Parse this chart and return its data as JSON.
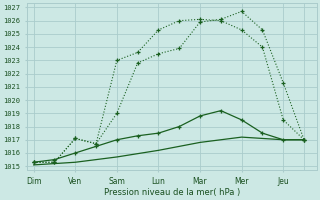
{
  "xlabel": "Pression niveau de la mer( hPa )",
  "ylim": [
    1015,
    1027
  ],
  "yticks": [
    1015,
    1016,
    1017,
    1018,
    1019,
    1020,
    1021,
    1022,
    1023,
    1024,
    1025,
    1026,
    1027
  ],
  "days": [
    "Dim",
    "Ven",
    "Sam",
    "Lun",
    "Mar",
    "Mer",
    "Jeu"
  ],
  "day_x": [
    0,
    1,
    2,
    3,
    4,
    5,
    6
  ],
  "line1_x": [
    0,
    0.5,
    1.0,
    1.5,
    2.0,
    2.5,
    3.0,
    3.5,
    4.0,
    4.5,
    5.0,
    5.5,
    6.0,
    6.5
  ],
  "line1_y": [
    1015.3,
    1015.3,
    1017.1,
    1016.7,
    1019.0,
    1022.8,
    1023.5,
    1023.9,
    1025.9,
    1026.1,
    1026.7,
    1025.3,
    1021.3,
    1017.0
  ],
  "line2_x": [
    0,
    0.5,
    1.0,
    1.5,
    2.0,
    2.5,
    3.0,
    3.5,
    4.0,
    4.5,
    5.0,
    5.5,
    6.0,
    6.5
  ],
  "line2_y": [
    1015.3,
    1015.3,
    1017.1,
    1016.7,
    1023.0,
    1023.6,
    1025.3,
    1026.0,
    1026.1,
    1026.0,
    1025.3,
    1024.0,
    1018.5,
    1017.0
  ],
  "line3_x": [
    0,
    0.5,
    1.0,
    1.5,
    2.0,
    2.5,
    3.0,
    3.5,
    4.0,
    4.5,
    5.0,
    5.5,
    6.0,
    6.5
  ],
  "line3_y": [
    1015.3,
    1015.5,
    1016.0,
    1016.5,
    1017.0,
    1017.3,
    1017.5,
    1018.0,
    1018.8,
    1019.2,
    1018.5,
    1017.5,
    1017.0,
    1017.0
  ],
  "line4_x": [
    0,
    1.0,
    2.0,
    3.0,
    4.0,
    5.0,
    6.0,
    6.5
  ],
  "line4_y": [
    1015.1,
    1015.3,
    1015.7,
    1016.2,
    1016.8,
    1017.2,
    1017.0,
    1017.0
  ],
  "bg_color": "#cce8e4",
  "grid_color": "#aacccc",
  "line_color": "#1a6020",
  "tick_label_color": "#1a5020",
  "xlabel_color": "#1a5020"
}
